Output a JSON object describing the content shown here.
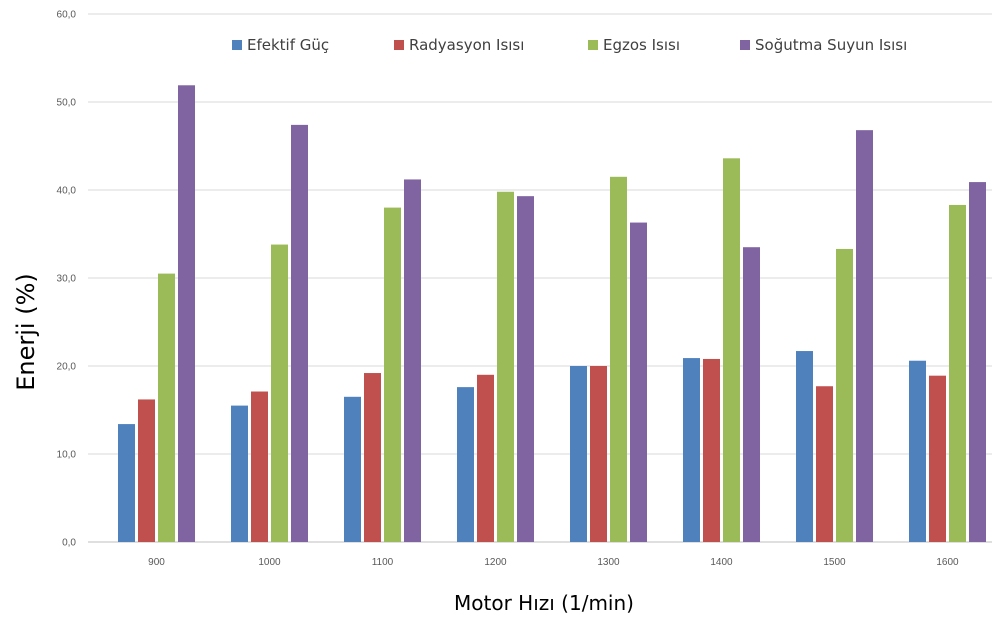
{
  "chart_data": {
    "type": "bar",
    "title": "",
    "xlabel": "Motor Hızı (1/min)",
    "ylabel": "Enerji (%)",
    "ylim": [
      0,
      60
    ],
    "yticks": [
      0,
      10,
      20,
      30,
      40,
      50,
      60
    ],
    "ytick_labels": [
      "0,0",
      "10,0",
      "20,0",
      "30,0",
      "40,0",
      "50,0",
      "60,0"
    ],
    "categories": [
      "900",
      "1000",
      "1100",
      "1200",
      "1300",
      "1400",
      "1500",
      "1600"
    ],
    "grid": true,
    "legend_position": "top",
    "series": [
      {
        "name": "Efektif Güç",
        "color": "#4F81BD",
        "values": [
          13.4,
          15.5,
          16.5,
          17.6,
          20.0,
          20.9,
          21.7,
          20.6
        ]
      },
      {
        "name": "Radyasyon Isısı",
        "color": "#C0504D",
        "values": [
          16.2,
          17.1,
          19.2,
          19.0,
          20.0,
          20.8,
          17.7,
          18.9
        ]
      },
      {
        "name": "Egzos Isısı",
        "color": "#9BBB59",
        "values": [
          30.5,
          33.8,
          38.0,
          39.8,
          41.5,
          43.6,
          33.3,
          38.3
        ]
      },
      {
        "name": "Soğutma Suyun Isısı",
        "color": "#8064A2",
        "values": [
          51.9,
          47.4,
          41.2,
          39.3,
          36.3,
          33.5,
          46.8,
          40.9
        ]
      }
    ]
  }
}
